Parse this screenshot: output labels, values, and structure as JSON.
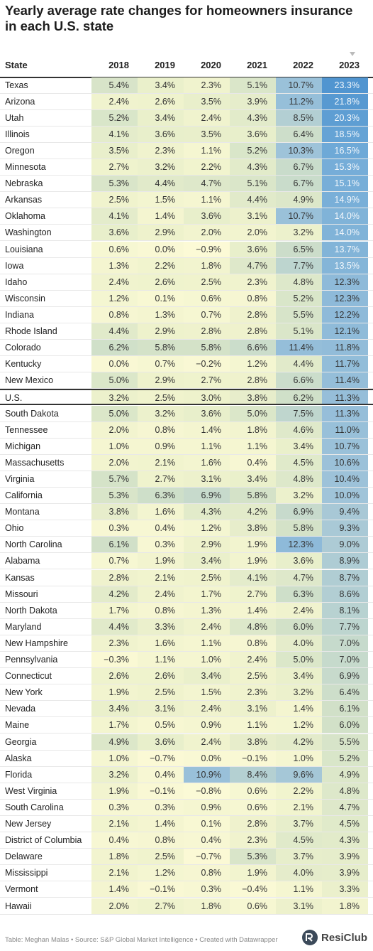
{
  "header": {
    "title": "Yearly average rate changes for homeowners insurance in each U.S. state"
  },
  "table": {
    "columns": [
      "State",
      "2018",
      "2019",
      "2020",
      "2021",
      "2022",
      "2023"
    ],
    "rows": [
      [
        "Texas",
        "5.4%",
        "3.4%",
        "2.3%",
        "5.1%",
        "10.7%",
        "23.3%"
      ],
      [
        "Arizona",
        "2.4%",
        "2.6%",
        "3.5%",
        "3.9%",
        "11.2%",
        "21.8%"
      ],
      [
        "Utah",
        "5.2%",
        "3.4%",
        "2.4%",
        "4.3%",
        "8.5%",
        "20.3%"
      ],
      [
        "Illinois",
        "4.1%",
        "3.6%",
        "3.5%",
        "3.6%",
        "6.4%",
        "18.5%"
      ],
      [
        "Oregon",
        "3.5%",
        "2.3%",
        "1.1%",
        "5.2%",
        "10.3%",
        "16.5%"
      ],
      [
        "Minnesota",
        "2.7%",
        "3.2%",
        "2.2%",
        "4.3%",
        "6.7%",
        "15.3%"
      ],
      [
        "Nebraska",
        "5.3%",
        "4.4%",
        "4.7%",
        "5.1%",
        "6.7%",
        "15.1%"
      ],
      [
        "Arkansas",
        "2.5%",
        "1.5%",
        "1.1%",
        "4.4%",
        "4.9%",
        "14.9%"
      ],
      [
        "Oklahoma",
        "4.1%",
        "1.4%",
        "3.6%",
        "3.1%",
        "10.7%",
        "14.0%"
      ],
      [
        "Washington",
        "3.6%",
        "2.9%",
        "2.0%",
        "2.0%",
        "3.2%",
        "14.0%"
      ],
      [
        "Louisiana",
        "0.6%",
        "0.0%",
        "−0.9%",
        "3.6%",
        "6.5%",
        "13.7%"
      ],
      [
        "Iowa",
        "1.3%",
        "2.2%",
        "1.8%",
        "4.7%",
        "7.7%",
        "13.5%"
      ],
      [
        "Idaho",
        "2.4%",
        "2.6%",
        "2.5%",
        "2.3%",
        "4.8%",
        "12.3%"
      ],
      [
        "Wisconsin",
        "1.2%",
        "0.1%",
        "0.6%",
        "0.8%",
        "5.2%",
        "12.3%"
      ],
      [
        "Indiana",
        "0.8%",
        "1.3%",
        "0.7%",
        "2.8%",
        "5.5%",
        "12.2%"
      ],
      [
        "Rhode Island",
        "4.4%",
        "2.9%",
        "2.8%",
        "2.8%",
        "5.1%",
        "12.1%"
      ],
      [
        "Colorado",
        "6.2%",
        "5.8%",
        "5.8%",
        "6.6%",
        "11.4%",
        "11.8%"
      ],
      [
        "Kentucky",
        "0.0%",
        "0.7%",
        "−0.2%",
        "1.2%",
        "4.4%",
        "11.7%"
      ],
      [
        "New Mexico",
        "5.0%",
        "2.9%",
        "2.7%",
        "2.8%",
        "6.6%",
        "11.4%"
      ],
      [
        "U.S.",
        "3.2%",
        "2.5%",
        "3.0%",
        "3.8%",
        "6.2%",
        "11.3%"
      ],
      [
        "South Dakota",
        "5.0%",
        "3.2%",
        "3.6%",
        "5.0%",
        "7.5%",
        "11.3%"
      ],
      [
        "Tennessee",
        "2.0%",
        "0.8%",
        "1.4%",
        "1.8%",
        "4.6%",
        "11.0%"
      ],
      [
        "Michigan",
        "1.0%",
        "0.9%",
        "1.1%",
        "1.1%",
        "3.4%",
        "10.7%"
      ],
      [
        "Massachusetts",
        "2.0%",
        "2.1%",
        "1.6%",
        "0.4%",
        "4.5%",
        "10.6%"
      ],
      [
        "Virginia",
        "5.7%",
        "2.7%",
        "3.1%",
        "3.4%",
        "4.8%",
        "10.4%"
      ],
      [
        "California",
        "5.3%",
        "6.3%",
        "6.9%",
        "5.8%",
        "3.2%",
        "10.0%"
      ],
      [
        "Montana",
        "3.8%",
        "1.6%",
        "4.3%",
        "4.2%",
        "6.9%",
        "9.4%"
      ],
      [
        "Ohio",
        "0.3%",
        "0.4%",
        "1.2%",
        "3.8%",
        "5.8%",
        "9.3%"
      ],
      [
        "North Carolina",
        "6.1%",
        "0.3%",
        "2.9%",
        "1.9%",
        "12.3%",
        "9.0%"
      ],
      [
        "Alabama",
        "0.7%",
        "1.9%",
        "3.4%",
        "1.9%",
        "3.6%",
        "8.9%"
      ],
      [
        "Kansas",
        "2.8%",
        "2.1%",
        "2.5%",
        "4.1%",
        "4.7%",
        "8.7%"
      ],
      [
        "Missouri",
        "4.2%",
        "2.4%",
        "1.7%",
        "2.7%",
        "6.3%",
        "8.6%"
      ],
      [
        "North Dakota",
        "1.7%",
        "0.8%",
        "1.3%",
        "1.4%",
        "2.4%",
        "8.1%"
      ],
      [
        "Maryland",
        "4.4%",
        "3.3%",
        "2.4%",
        "4.8%",
        "6.0%",
        "7.7%"
      ],
      [
        "New Hampshire",
        "2.3%",
        "1.6%",
        "1.1%",
        "0.8%",
        "4.0%",
        "7.0%"
      ],
      [
        "Pennsylvania",
        "−0.3%",
        "1.1%",
        "1.0%",
        "2.4%",
        "5.0%",
        "7.0%"
      ],
      [
        "Connecticut",
        "2.6%",
        "2.6%",
        "3.4%",
        "2.5%",
        "3.4%",
        "6.9%"
      ],
      [
        "New York",
        "1.9%",
        "2.5%",
        "1.5%",
        "2.3%",
        "3.2%",
        "6.4%"
      ],
      [
        "Nevada",
        "3.4%",
        "3.1%",
        "2.4%",
        "3.1%",
        "1.4%",
        "6.1%"
      ],
      [
        "Maine",
        "1.7%",
        "0.5%",
        "0.9%",
        "1.1%",
        "1.2%",
        "6.0%"
      ],
      [
        "Georgia",
        "4.9%",
        "3.6%",
        "2.4%",
        "3.8%",
        "4.2%",
        "5.5%"
      ],
      [
        "Alaska",
        "1.0%",
        "−0.7%",
        "0.0%",
        "−0.1%",
        "1.0%",
        "5.2%"
      ],
      [
        "Florida",
        "3.2%",
        "0.4%",
        "10.9%",
        "8.4%",
        "9.6%",
        "4.9%"
      ],
      [
        "West Virginia",
        "1.9%",
        "−0.1%",
        "−0.8%",
        "0.6%",
        "2.2%",
        "4.8%"
      ],
      [
        "South Carolina",
        "0.3%",
        "0.3%",
        "0.9%",
        "0.6%",
        "2.1%",
        "4.7%"
      ],
      [
        "New Jersey",
        "2.1%",
        "1.4%",
        "0.1%",
        "2.8%",
        "3.7%",
        "4.5%"
      ],
      [
        "District of Columbia",
        "0.4%",
        "0.8%",
        "0.4%",
        "2.3%",
        "4.5%",
        "4.3%"
      ],
      [
        "Delaware",
        "1.8%",
        "2.5%",
        "−0.7%",
        "5.3%",
        "3.7%",
        "3.9%"
      ],
      [
        "Mississippi",
        "2.1%",
        "1.2%",
        "0.8%",
        "1.9%",
        "4.0%",
        "3.9%"
      ],
      [
        "Vermont",
        "1.4%",
        "−0.1%",
        "0.3%",
        "−0.4%",
        "1.1%",
        "3.3%"
      ],
      [
        "Hawaii",
        "2.0%",
        "2.7%",
        "1.8%",
        "0.6%",
        "3.1%",
        "1.8%"
      ]
    ]
  },
  "footer": {
    "credit": "Table: Meghan Malas • Source: S&P Global Market Intelligence • Created with Datawrapper",
    "logo": "ResiClub"
  }
}
